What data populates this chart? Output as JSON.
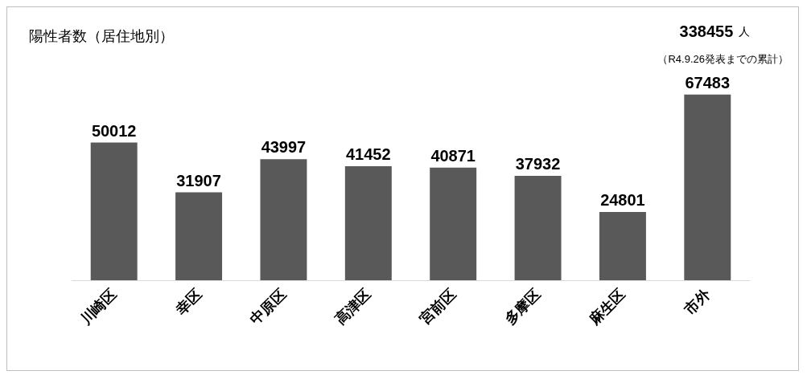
{
  "chart_data": {
    "type": "bar",
    "title": "陽性者数（居住地別）",
    "categories": [
      "川崎区",
      "幸区",
      "中原区",
      "高津区",
      "宮前区",
      "多摩区",
      "麻生区",
      "市外"
    ],
    "values": [
      50012,
      31907,
      43997,
      41452,
      40871,
      37932,
      24801,
      67483
    ],
    "color": "#595959",
    "data_labels": true,
    "grid": false,
    "annotations": [
      "338455 人",
      "（R4.9.26発表までの累計）"
    ]
  }
}
